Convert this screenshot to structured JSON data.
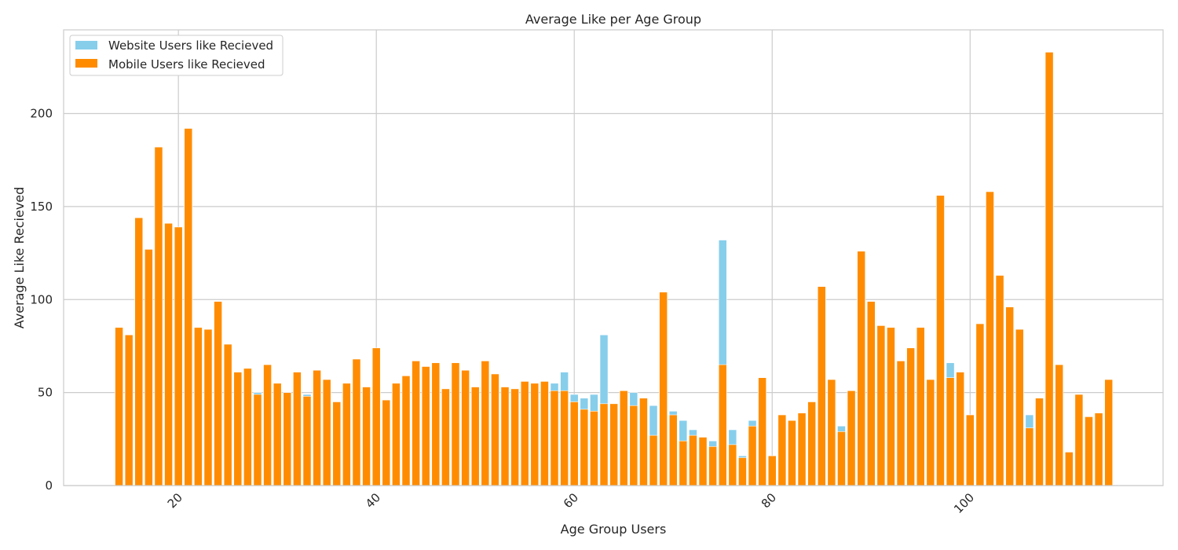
{
  "chart_data": {
    "type": "bar",
    "title": "Average Like per Age Group",
    "xlabel": "Age Group Users",
    "ylabel": "Average Like Recieved",
    "xlim": [
      8.4,
      119.5
    ],
    "ylim": [
      0,
      245
    ],
    "xticks": [
      20,
      40,
      60,
      80,
      100
    ],
    "yticks": [
      0,
      50,
      100,
      150,
      200
    ],
    "xtick_rotation": 45,
    "grid": true,
    "legend_position": "top-left",
    "overlay": true,
    "x": [
      14,
      15,
      16,
      17,
      18,
      19,
      20,
      21,
      22,
      23,
      24,
      25,
      26,
      27,
      28,
      29,
      30,
      31,
      32,
      33,
      34,
      35,
      36,
      37,
      38,
      39,
      40,
      41,
      42,
      43,
      44,
      45,
      46,
      47,
      48,
      49,
      50,
      51,
      52,
      53,
      54,
      55,
      56,
      57,
      58,
      59,
      60,
      61,
      62,
      63,
      64,
      65,
      66,
      67,
      68,
      69,
      70,
      71,
      72,
      73,
      74,
      75,
      76,
      77,
      78,
      79,
      80,
      81,
      82,
      83,
      84,
      85,
      86,
      87,
      88,
      89,
      90,
      91,
      92,
      93,
      94,
      95,
      96,
      97,
      98,
      99,
      100,
      101,
      102,
      103,
      104,
      105,
      106,
      107,
      108,
      109,
      110,
      111,
      112,
      113,
      114
    ],
    "series": [
      {
        "name": "Website Users like Recieved",
        "color": "#87ceeb",
        "values": [
          85,
          81,
          144,
          127,
          182,
          141,
          139,
          192,
          85,
          84,
          99,
          76,
          61,
          63,
          50,
          65,
          55,
          50,
          61,
          49,
          62,
          57,
          45,
          55,
          68,
          53,
          74,
          46,
          55,
          59,
          67,
          64,
          66,
          52,
          66,
          62,
          53,
          67,
          60,
          53,
          52,
          56,
          55,
          56,
          55,
          61,
          49,
          47,
          49,
          81,
          44,
          51,
          50,
          47,
          43,
          104,
          40,
          35,
          30,
          26,
          24,
          132,
          30,
          16,
          35,
          58,
          16,
          38,
          35,
          39,
          45,
          107,
          57,
          32,
          51,
          126,
          99,
          86,
          85,
          67,
          74,
          85,
          57,
          156,
          66,
          61,
          38,
          87,
          158,
          113,
          96,
          84,
          38,
          47,
          233,
          65,
          18,
          49,
          37,
          39,
          57
        ]
      },
      {
        "name": "Mobile Users like Recieved",
        "color": "#ff8c00",
        "values": [
          85,
          81,
          144,
          127,
          182,
          141,
          139,
          192,
          85,
          84,
          99,
          76,
          61,
          63,
          49,
          65,
          55,
          50,
          61,
          48,
          62,
          57,
          45,
          55,
          68,
          53,
          74,
          46,
          55,
          59,
          67,
          64,
          66,
          52,
          66,
          62,
          53,
          67,
          60,
          53,
          52,
          56,
          55,
          56,
          51,
          51,
          45,
          41,
          40,
          44,
          44,
          51,
          43,
          47,
          27,
          104,
          38,
          24,
          27,
          26,
          21,
          65,
          22,
          15,
          32,
          58,
          16,
          38,
          35,
          39,
          45,
          107,
          57,
          29,
          51,
          126,
          99,
          86,
          85,
          67,
          74,
          85,
          57,
          156,
          58,
          61,
          38,
          87,
          158,
          113,
          96,
          84,
          31,
          47,
          233,
          65,
          18,
          49,
          37,
          39,
          57
        ]
      }
    ]
  }
}
